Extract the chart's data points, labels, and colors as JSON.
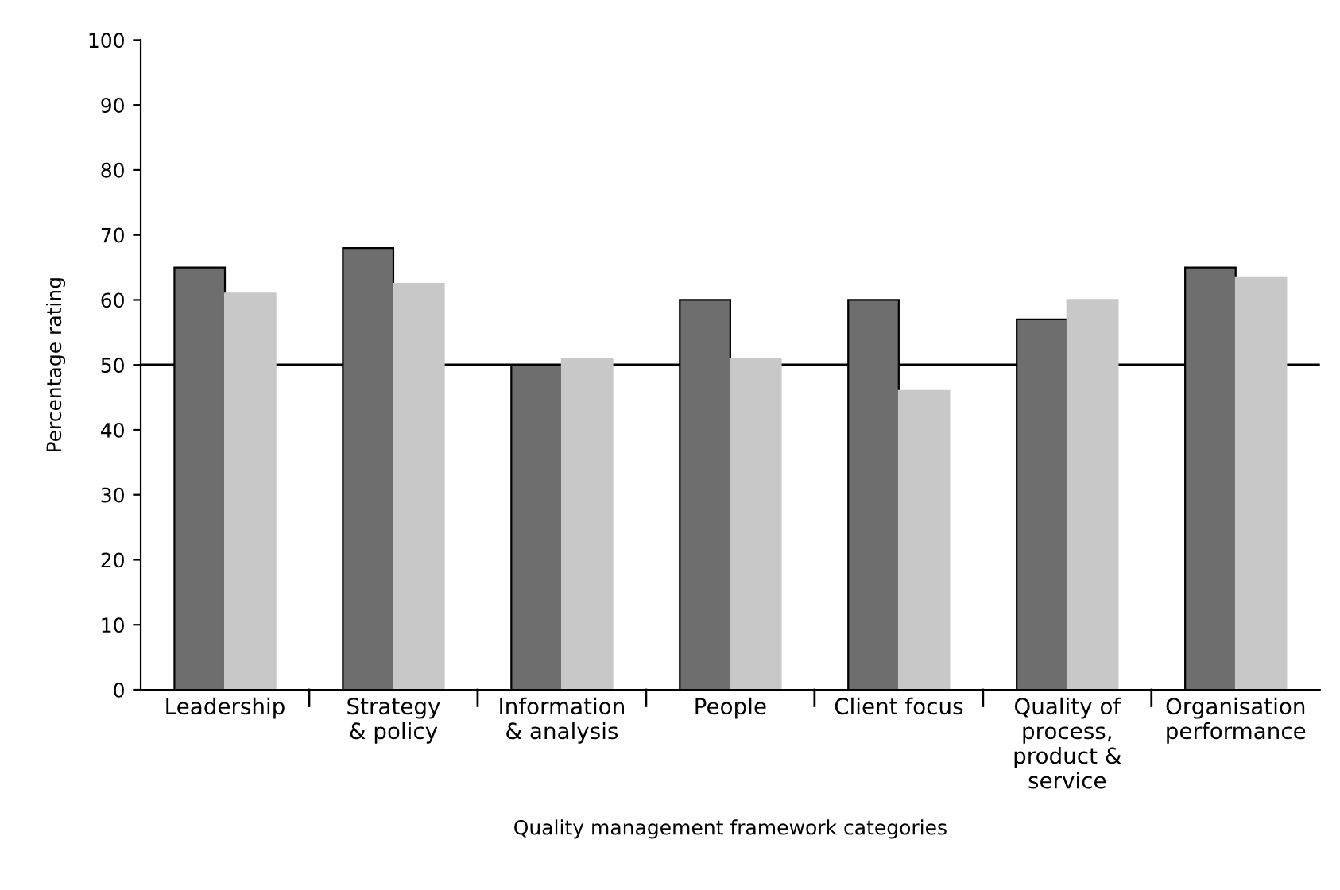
{
  "chart_data": {
    "type": "bar",
    "xlabel": "Quality management framework categories",
    "ylabel": "Percentage rating",
    "categories": [
      "Leadership",
      "Strategy\n& policy",
      "Information\n& analysis",
      "People",
      "Client focus",
      "Quality of\nprocess,\nproduct &\nservice",
      "Organisation\nperformance"
    ],
    "series": [
      {
        "color": "#6e6e6e",
        "values": [
          65,
          68,
          50,
          60,
          60,
          57,
          65
        ]
      },
      {
        "color": "#c8c8c8",
        "values": [
          61,
          62.5,
          51,
          51,
          46,
          60,
          63.5
        ]
      }
    ],
    "ylim": [
      0,
      100
    ],
    "yticks": [
      0,
      10,
      20,
      30,
      40,
      50,
      60,
      70,
      80,
      90,
      100
    ],
    "grid": false,
    "legend": false,
    "ref_lines": [
      {
        "axis": "y",
        "value": 50,
        "color": "#000000",
        "line_style": "solid"
      }
    ]
  }
}
